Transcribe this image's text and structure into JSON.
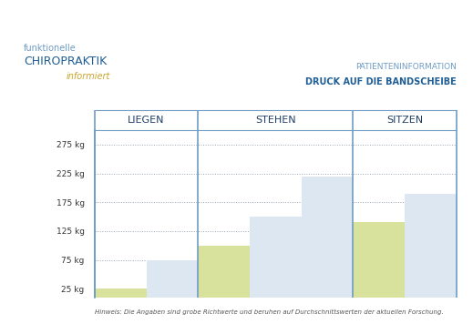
{
  "logo": {
    "line1": "funktionelle",
    "line2": "CHIROPRAKTIK",
    "line3": "informiert"
  },
  "chart_data": {
    "type": "bar",
    "subtitle": "PATIENTENINFORMATION",
    "title": "DRUCK AUF DIE BANDSCHEIBE",
    "groups": [
      {
        "name": "LIEGEN",
        "values": [
          25,
          75
        ],
        "colors": [
          "#d8e29c",
          "#dde7f1"
        ]
      },
      {
        "name": "STEHEN",
        "values": [
          100,
          150,
          220
        ],
        "colors": [
          "#d8e29c",
          "#dde7f1",
          "#dde7f1"
        ]
      },
      {
        "name": "SITZEN",
        "values": [
          140,
          190
        ],
        "colors": [
          "#d8e29c",
          "#dde7f1"
        ]
      }
    ],
    "ylim": [
      10,
      300
    ],
    "yticks": [
      {
        "value": 25,
        "label": "25 kg"
      },
      {
        "value": 75,
        "label": "75 kg"
      },
      {
        "value": 125,
        "label": "125 kg"
      },
      {
        "value": 175,
        "label": "175 kg"
      },
      {
        "value": 225,
        "label": "225 kg"
      },
      {
        "value": 275,
        "label": "275 kg"
      }
    ],
    "grid": true,
    "tick_labels": "y",
    "note": "Hinweis: Die Angaben sind grobe Richtwerte und beruhen auf Durchschnittswerten der aktuellen Forschung."
  }
}
